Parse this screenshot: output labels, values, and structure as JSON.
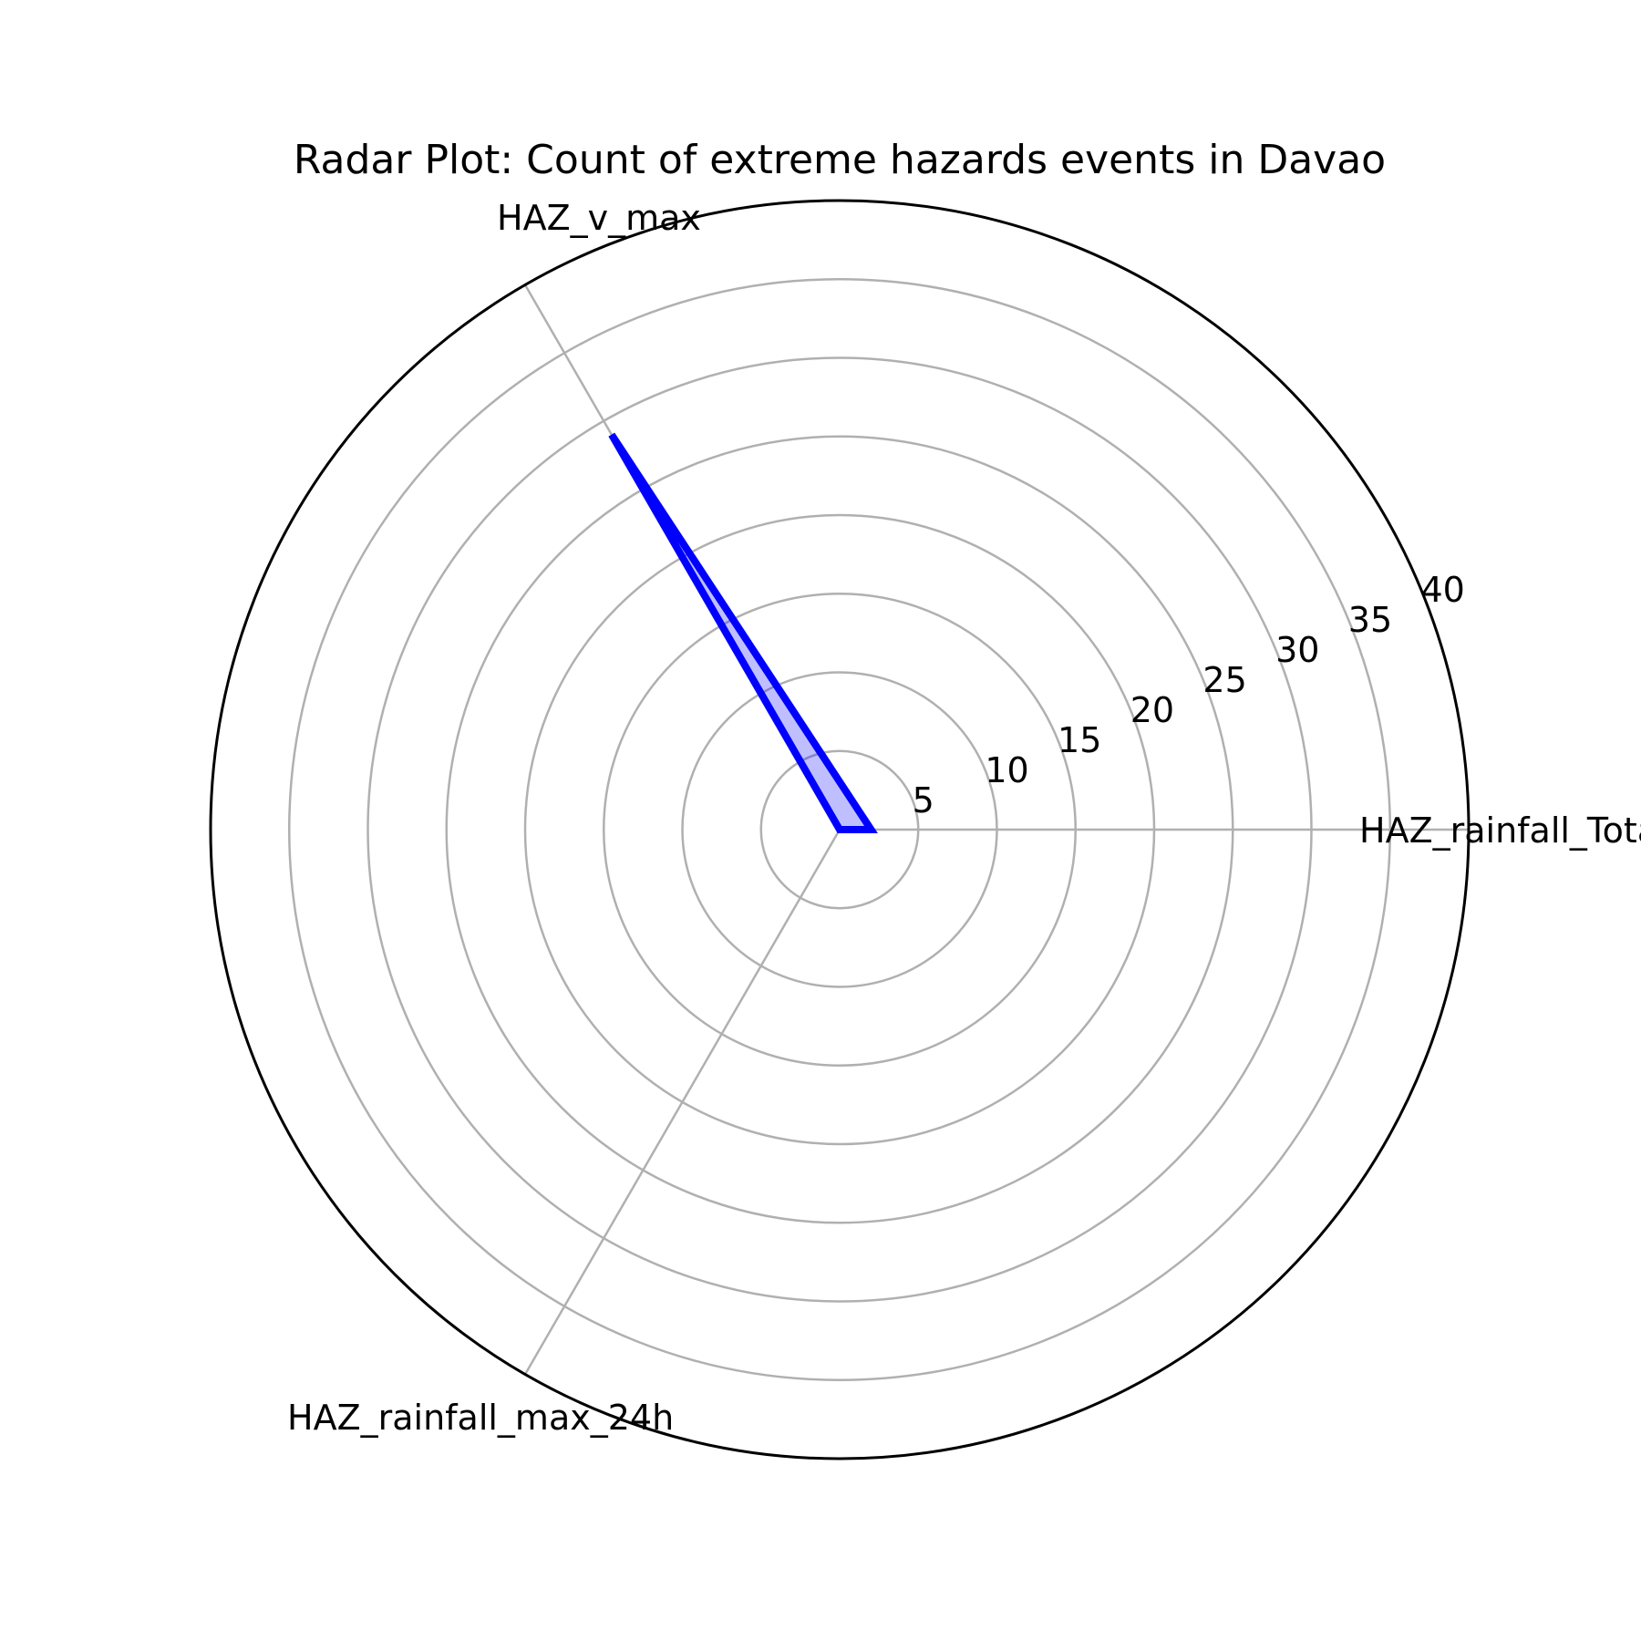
{
  "chart_data": {
    "type": "radar",
    "title": "Radar Plot: Count of extreme hazards events in Davao",
    "axes": [
      "HAZ_rainfall_Total",
      "HAZ_v_max",
      "HAZ_rainfall_max_24h"
    ],
    "series": [
      {
        "values": [
          2,
          29,
          0
        ],
        "color": "#0000ff"
      }
    ],
    "rlim": [
      0,
      40
    ],
    "rticks": [
      5,
      10,
      15,
      20,
      25,
      30,
      35,
      40
    ],
    "grid": true,
    "gridline_color": "#b0b0b0"
  }
}
